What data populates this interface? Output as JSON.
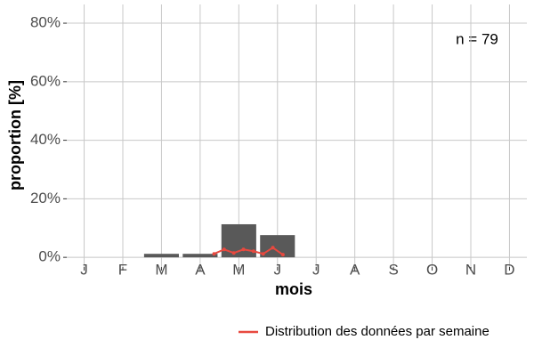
{
  "chart_data": {
    "type": "bar",
    "x_label": "mois",
    "y_label": "proportion [%]",
    "annotation": "n = 79",
    "categories": [
      "J",
      "F",
      "M",
      "A",
      "M",
      "J",
      "J",
      "A",
      "S",
      "O",
      "N",
      "D"
    ],
    "values": [
      0,
      0,
      1.2,
      1.2,
      11.3,
      7.6,
      0,
      0,
      0,
      0,
      0,
      0
    ],
    "color": "#595959",
    "lines": [
      {
        "name": "Distribution des données par semaine",
        "color": "#e8493f",
        "x": [
          4.36,
          4.62,
          4.87,
          5.12,
          5.38,
          5.63,
          5.88,
          6.14
        ],
        "values": [
          1.2,
          2.7,
          1.5,
          2.7,
          2.1,
          1.2,
          3.3,
          0.9
        ]
      }
    ],
    "xlim": [
      0.55,
      12.45
    ],
    "ylim": [
      -3.3,
      86.4
    ],
    "yticks": [
      {
        "value": 0,
        "label": "0%"
      },
      {
        "value": 20,
        "label": "20%"
      },
      {
        "value": 40,
        "label": "40%"
      },
      {
        "value": 60,
        "label": "60%"
      },
      {
        "value": 80,
        "label": "80%"
      }
    ],
    "grid": true,
    "legend_position": "bottom-right"
  }
}
